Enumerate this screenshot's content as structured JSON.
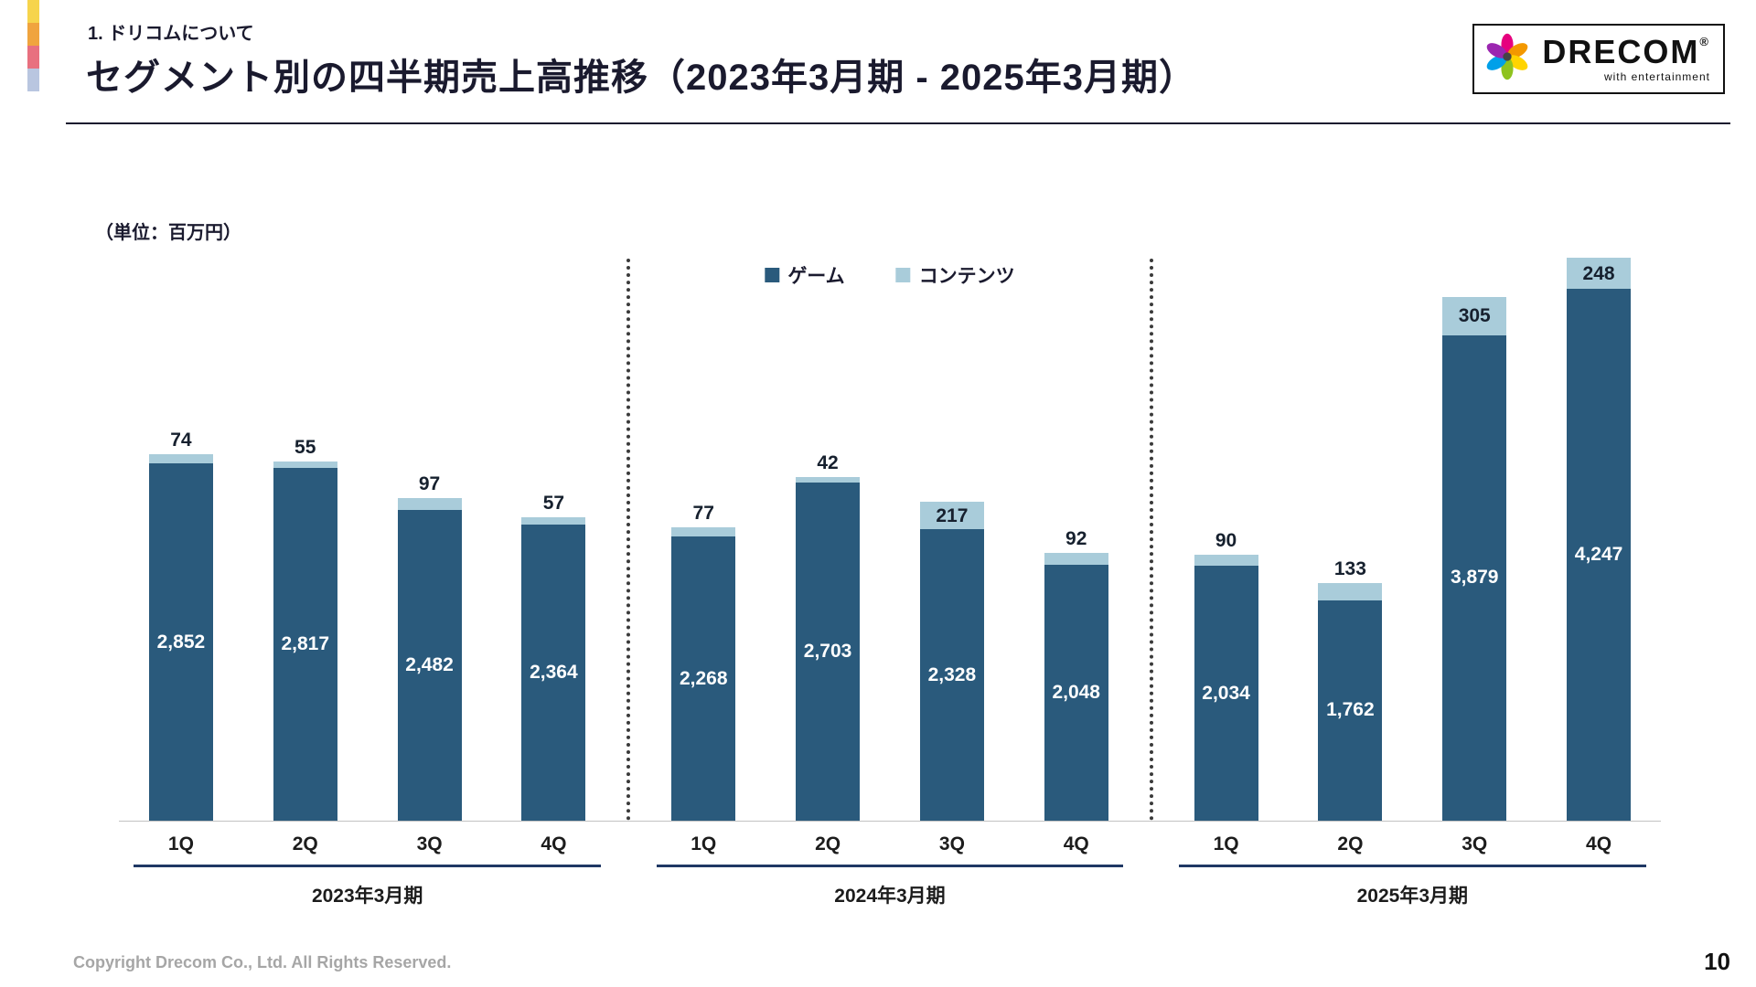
{
  "header": {
    "kicker": "1. ドリコムについて",
    "title": "セグメント別の四半期売上高推移（2023年3月期 - 2025年3月期）"
  },
  "logo": {
    "name": "DRECOM",
    "registered": "®",
    "tagline": "with entertainment"
  },
  "chart_data": {
    "type": "bar",
    "stacked": true,
    "title": "セグメント別の四半期売上高推移（2023年3月期 - 2025年3月期）",
    "unit_label": "（単位：百万円）",
    "ylabel": "",
    "xlabel": "",
    "ylim": [
      0,
      4600
    ],
    "grid": false,
    "legend_position": "top-center",
    "series": [
      {
        "name": "ゲーム",
        "color": "#2a5a7c"
      },
      {
        "name": "コンテンツ",
        "color": "#a9ccda"
      }
    ],
    "groups": [
      {
        "label": "2023年3月期",
        "quarters": [
          "1Q",
          "2Q",
          "3Q",
          "4Q"
        ],
        "game": [
          2852,
          2817,
          2482,
          2364
        ],
        "contents": [
          74,
          55,
          97,
          57
        ]
      },
      {
        "label": "2024年3月期",
        "quarters": [
          "1Q",
          "2Q",
          "3Q",
          "4Q"
        ],
        "game": [
          2268,
          2703,
          2328,
          2048
        ],
        "contents": [
          77,
          42,
          217,
          92
        ]
      },
      {
        "label": "2025年3月期",
        "quarters": [
          "1Q",
          "2Q",
          "3Q",
          "4Q"
        ],
        "game": [
          2034,
          1762,
          3879,
          4247
        ],
        "contents": [
          90,
          133,
          305,
          248
        ]
      }
    ]
  },
  "footer": {
    "copyright": "Copyright Drecom Co., Ltd. All Rights Reserved.",
    "page": "10"
  }
}
